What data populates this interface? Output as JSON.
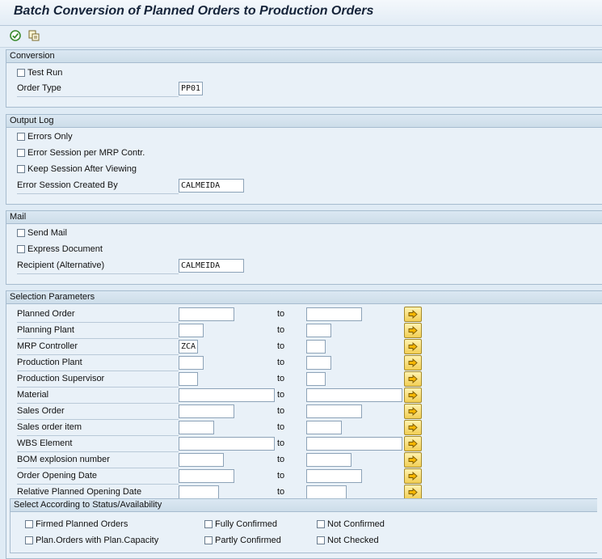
{
  "window": {
    "title": "Batch Conversion of Planned Orders to Production Orders"
  },
  "toolbar": {
    "execute_icon": "execute-icon",
    "variant_icon": "get-variant-icon"
  },
  "conversion": {
    "header": "Conversion",
    "test_run": "Test Run",
    "order_type_label": "Order Type",
    "order_type_value": "PP01"
  },
  "output_log": {
    "header": "Output Log",
    "errors_only": "Errors Only",
    "error_session": "Error Session per MRP Contr.",
    "keep_session": "Keep Session After Viewing",
    "created_by_label": "Error Session Created By",
    "created_by_value": "CALMEIDA"
  },
  "mail": {
    "header": "Mail",
    "send_mail": "Send Mail",
    "express_document": "Express Document",
    "recipient_label": "Recipient (Alternative)",
    "recipient_value": "CALMEIDA"
  },
  "selection": {
    "header": "Selection Parameters",
    "to_label": "to",
    "rows": [
      {
        "label": "Planned Order",
        "from": "",
        "to": ""
      },
      {
        "label": "Planning Plant",
        "from": "",
        "to": ""
      },
      {
        "label": "MRP Controller",
        "from": "ZCA",
        "to": ""
      },
      {
        "label": "Production Plant",
        "from": "",
        "to": ""
      },
      {
        "label": "Production Supervisor",
        "from": "",
        "to": ""
      },
      {
        "label": "Material",
        "from": "",
        "to": ""
      },
      {
        "label": "Sales Order",
        "from": "",
        "to": ""
      },
      {
        "label": "Sales order item",
        "from": "",
        "to": ""
      },
      {
        "label": "WBS Element",
        "from": "",
        "to": ""
      },
      {
        "label": "BOM explosion number",
        "from": "",
        "to": ""
      },
      {
        "label": "Order Opening Date",
        "from": "",
        "to": ""
      },
      {
        "label": "Relative Planned Opening Date",
        "from": "",
        "to": ""
      }
    ]
  },
  "status": {
    "header": "Select According to Status/Availability",
    "firmed": "Firmed Planned Orders",
    "fully_confirmed": "Fully Confirmed",
    "not_confirmed": "Not Confirmed",
    "plan_capacity": "Plan.Orders with Plan.Capacity",
    "partly_confirmed": "Partly Confirmed",
    "not_checked": "Not Checked"
  }
}
